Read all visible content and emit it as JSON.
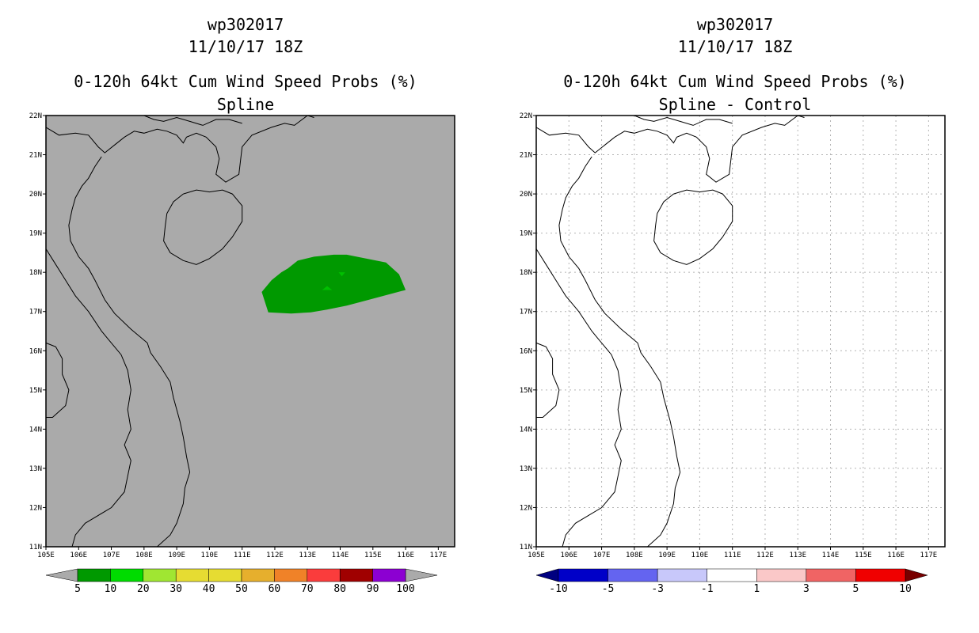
{
  "panels": [
    {
      "id": "left",
      "title_line1": "wp302017",
      "title_line2": "11/10/17 18Z",
      "title_line3": "0-120h 64kt Cum Wind Speed Probs (%)",
      "title_line4": "Spline",
      "background_color": "#aaaaaa",
      "grid": false
    },
    {
      "id": "right",
      "title_line1": "wp302017",
      "title_line2": "11/10/17 18Z",
      "title_line3": "0-120h 64kt Cum Wind Speed Probs (%)",
      "title_line4": "Spline - Control",
      "background_color": "#ffffff",
      "grid": true
    }
  ],
  "chart_data": [
    {
      "type": "heatmap",
      "title": "0-120h 64kt Cum Wind Speed Probs (%)",
      "subtitle": "Spline",
      "x_ticks": [
        "105E",
        "106E",
        "107E",
        "108E",
        "109E",
        "110E",
        "111E",
        "112E",
        "113E",
        "114E",
        "115E",
        "116E",
        "117E"
      ],
      "y_ticks": [
        "11N",
        "12N",
        "13N",
        "14N",
        "15N",
        "16N",
        "17N",
        "18N",
        "19N",
        "20N",
        "21N",
        "22N"
      ],
      "xlim": [
        105,
        117.5
      ],
      "ylim": [
        11,
        22
      ],
      "probability_area": {
        "level": "5-10",
        "color": "#009900",
        "polygon_lon_lat": [
          [
            111.6,
            17.5
          ],
          [
            111.9,
            17.8
          ],
          [
            112.2,
            18.0
          ],
          [
            112.4,
            18.1
          ],
          [
            112.7,
            18.3
          ],
          [
            113.2,
            18.4
          ],
          [
            113.8,
            18.45
          ],
          [
            114.2,
            18.45
          ],
          [
            115.4,
            18.25
          ],
          [
            115.8,
            17.95
          ],
          [
            116.0,
            17.55
          ],
          [
            115.1,
            17.35
          ],
          [
            114.2,
            17.15
          ],
          [
            113.6,
            17.05
          ],
          [
            113.1,
            16.98
          ],
          [
            112.5,
            16.95
          ],
          [
            111.8,
            16.98
          ]
        ]
      },
      "colorbar": {
        "labels": [
          "5",
          "10",
          "20",
          "30",
          "40",
          "50",
          "60",
          "70",
          "80",
          "90",
          "100"
        ],
        "colors": [
          "#009900",
          "#00dc00",
          "#a0e632",
          "#e6dc32",
          "#e6dc32",
          "#e6af2d",
          "#f08228",
          "#fa3c3c",
          "#a00000",
          "#8c00d2"
        ]
      }
    },
    {
      "type": "heatmap",
      "title": "0-120h 64kt Cum Wind Speed Probs (%)",
      "subtitle": "Spline - Control",
      "x_ticks": [
        "105E",
        "106E",
        "107E",
        "108E",
        "109E",
        "110E",
        "111E",
        "112E",
        "113E",
        "114E",
        "115E",
        "116E",
        "117E"
      ],
      "y_ticks": [
        "11N",
        "12N",
        "13N",
        "14N",
        "15N",
        "16N",
        "17N",
        "18N",
        "19N",
        "20N",
        "21N",
        "22N"
      ],
      "xlim": [
        105,
        117.5
      ],
      "ylim": [
        11,
        22
      ],
      "difference_field": "none",
      "colorbar": {
        "labels": [
          "-10",
          "-5",
          "-3",
          "-1",
          "1",
          "3",
          "5",
          "10"
        ],
        "colors": [
          "#0000c8",
          "#6464f0",
          "#c8c8fa",
          "#ffffff",
          "#fac8c8",
          "#f06464",
          "#f00000"
        ],
        "end_colors": [
          "#000080",
          "#780000"
        ]
      }
    }
  ],
  "colorbar_ends": {
    "left_tri_color": "#aaaaaa",
    "right_tri_color": "#aaaaaa"
  }
}
